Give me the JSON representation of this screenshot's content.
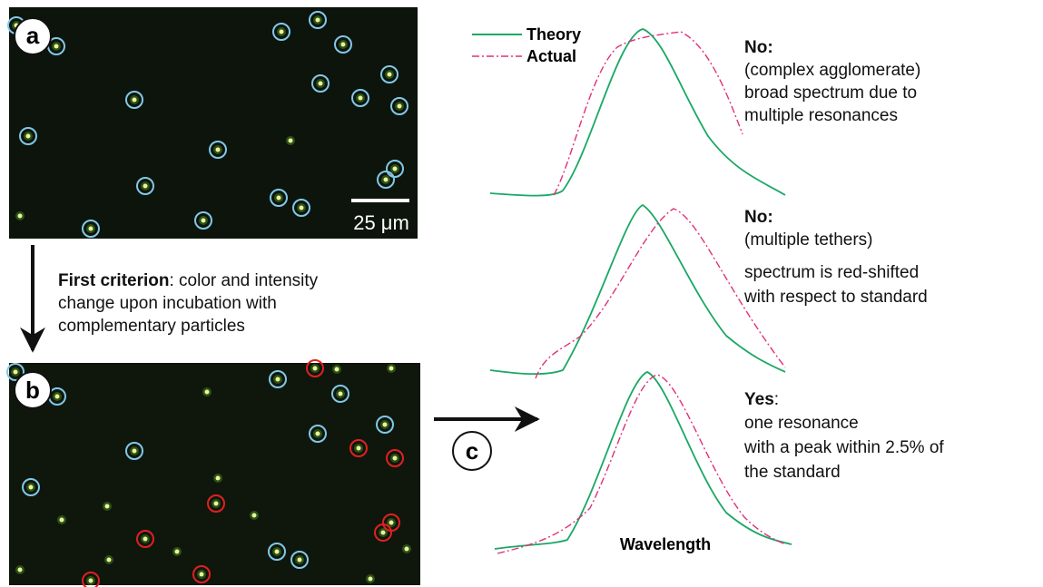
{
  "panels": {
    "a": "a",
    "b": "b",
    "c": "c"
  },
  "scale_bar": "25 μm",
  "criterion": {
    "title": "First criterion",
    "lines": [
      ": color and intensity",
      "change upon incubation with",
      "complementary particles"
    ]
  },
  "legend": {
    "theory": "Theory",
    "actual": "Actual"
  },
  "verdicts": [
    {
      "head": "No:",
      "lines": [
        "(complex agglomerate)",
        "broad spectrum due to",
        "multiple resonances"
      ]
    },
    {
      "head": "No:",
      "lines": [
        "(multiple tethers)",
        "spectrum is red-shifted",
        "with respect to standard"
      ]
    },
    {
      "head": "Yes",
      "suffix": ":",
      "lines": [
        "one resonance",
        "with a peak within 2.5% of",
        "the standard"
      ]
    }
  ],
  "x_axis_label": "Wavelength"
}
